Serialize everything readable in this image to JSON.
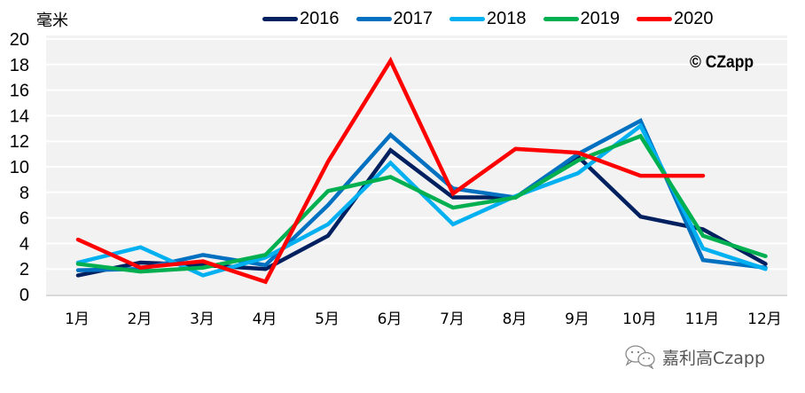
{
  "chart_data": {
    "type": "line",
    "ylabel": "毫米",
    "ylim": [
      0,
      20
    ],
    "yticks": [
      "0",
      "2",
      "4",
      "6",
      "8",
      "10",
      "12",
      "14",
      "16",
      "18",
      "20"
    ],
    "ytick_values": [
      0,
      2,
      4,
      6,
      8,
      10,
      12,
      14,
      16,
      18,
      20
    ],
    "categories": [
      "1月",
      "2月",
      "3月",
      "4月",
      "5月",
      "6月",
      "7月",
      "8月",
      "9月",
      "10月",
      "11月",
      "12月"
    ],
    "grid": true,
    "legend_position": "top",
    "series": [
      {
        "name": "2016",
        "color": "#002060",
        "values": [
          1.5,
          2.5,
          2.3,
          2.0,
          4.6,
          11.3,
          7.6,
          7.6,
          10.8,
          6.1,
          5.1,
          2.4
        ]
      },
      {
        "name": "2017",
        "color": "#0070C0",
        "values": [
          1.9,
          2.0,
          3.1,
          2.3,
          7.0,
          12.5,
          8.3,
          7.6,
          11.0,
          13.6,
          2.7,
          2.1
        ]
      },
      {
        "name": "2018",
        "color": "#00B0F0",
        "values": [
          2.5,
          3.7,
          1.5,
          2.9,
          5.5,
          10.3,
          5.5,
          7.7,
          9.5,
          13.2,
          3.6,
          2.0
        ]
      },
      {
        "name": "2019",
        "color": "#00B050",
        "values": [
          2.4,
          1.8,
          2.1,
          3.1,
          8.1,
          9.2,
          6.8,
          7.6,
          10.5,
          12.4,
          4.6,
          3.0
        ]
      },
      {
        "name": "2020",
        "color": "#FF0000",
        "values": [
          4.3,
          2.1,
          2.6,
          1.0,
          10.4,
          18.3,
          7.9,
          11.4,
          11.1,
          9.3,
          9.3,
          null
        ]
      }
    ]
  },
  "watermark": "© CZapp",
  "footer": {
    "text": "嘉利高Czapp",
    "icon": "wechat-icon"
  }
}
